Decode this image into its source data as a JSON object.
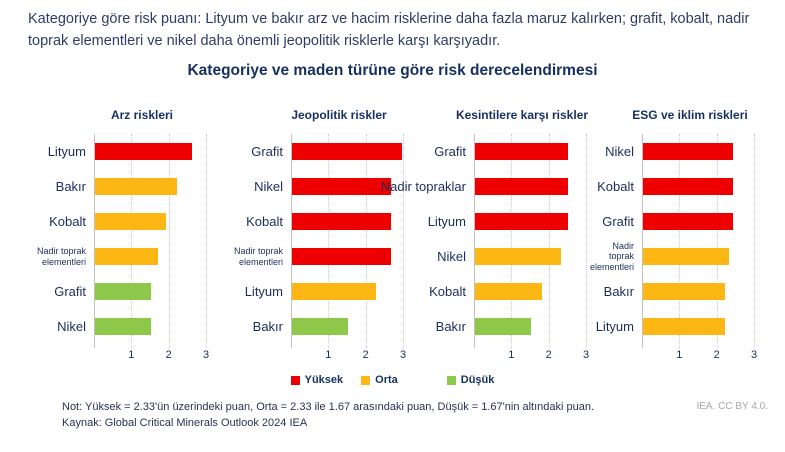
{
  "intro": "Kategoriye göre risk puanı: Lityum ve bakır arz ve hacim risklerine daha fazla maruz kalırken; grafit, kobalt, nadir toprak elementleri ve nikel daha önemli jeopolitik risklerle karşı karşıyadır.",
  "title": "Kategoriye ve maden türüne göre risk derecelendirmesi",
  "colors": {
    "levels": {
      "Yüksek": "#EE0000",
      "Orta": "#FDB714",
      "Düşük": "#8DC84B"
    },
    "text_navy": "#1A2E5C",
    "gridline": "#c9c9c9"
  },
  "legend": [
    "Yüksek",
    "Orta",
    "Düşük"
  ],
  "axis": {
    "min": 0,
    "max": 3,
    "ticks": [
      1,
      2,
      3
    ]
  },
  "chart_data": [
    {
      "type": "bar",
      "orientation": "horizontal",
      "title": "Arz riskleri",
      "categories": [
        "Lityum",
        "Bakır",
        "Kobalt",
        "Nadir toprak elementleri",
        "Grafit",
        "Nikel"
      ],
      "values": [
        2.6,
        2.2,
        1.9,
        1.7,
        1.5,
        1.5
      ],
      "levels": [
        "Yüksek",
        "Orta",
        "Orta",
        "Orta",
        "Düşük",
        "Düşük"
      ],
      "xlim": [
        0,
        3
      ],
      "xticks": [
        1,
        2,
        3
      ]
    },
    {
      "type": "bar",
      "orientation": "horizontal",
      "title": "Jeopolitik riskler",
      "categories": [
        "Grafit",
        "Nikel",
        "Kobalt",
        "Nadir toprak elementleri",
        "Lityum",
        "Bakır"
      ],
      "values": [
        2.95,
        2.65,
        2.65,
        2.65,
        2.25,
        1.5
      ],
      "levels": [
        "Yüksek",
        "Yüksek",
        "Yüksek",
        "Yüksek",
        "Orta",
        "Düşük"
      ],
      "xlim": [
        0,
        3
      ],
      "xticks": [
        1,
        2,
        3
      ]
    },
    {
      "type": "bar",
      "orientation": "horizontal",
      "title": "Kesintilere karşı riskler",
      "categories": [
        "Grafit",
        "Nadir topraklar",
        "Lityum",
        "Nikel",
        "Kobalt",
        "Bakır"
      ],
      "values": [
        2.5,
        2.5,
        2.5,
        2.3,
        1.8,
        1.5
      ],
      "levels": [
        "Yüksek",
        "Yüksek",
        "Yüksek",
        "Orta",
        "Orta",
        "Düşük"
      ],
      "xlim": [
        0,
        3
      ],
      "xticks": [
        1,
        2,
        3
      ]
    },
    {
      "type": "bar",
      "orientation": "horizontal",
      "title": "ESG ve iklim riskleri",
      "categories": [
        "Nikel",
        "Kobalt",
        "Grafit",
        "Nadir toprak elementleri",
        "Bakır",
        "Lityum"
      ],
      "values": [
        2.4,
        2.4,
        2.4,
        2.3,
        2.2,
        2.2
      ],
      "levels": [
        "Yüksek",
        "Yüksek",
        "Yüksek",
        "Orta",
        "Orta",
        "Orta"
      ],
      "xlim": [
        0,
        3
      ],
      "xticks": [
        1,
        2,
        3
      ]
    }
  ],
  "footer": {
    "note": "Not: Yüksek = 2.33'ün üzerindeki puan, Orta = 2.33 ile 1.67 arasındaki puan, Düşük = 1.67'nin altındaki puan.",
    "source": "Kaynak: Global Critical Minerals Outlook 2024 IEA",
    "license": "IEA. CC BY 4.0."
  }
}
